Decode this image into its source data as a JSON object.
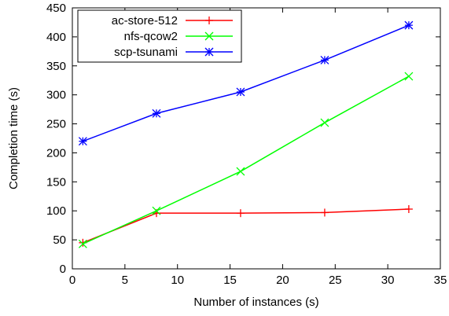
{
  "chart_data": {
    "type": "line",
    "title": "",
    "xlabel": "Number of instances (s)",
    "ylabel": "Completion time (s)",
    "xlim": [
      0,
      35
    ],
    "ylim": [
      0,
      450
    ],
    "xticks": [
      0,
      5,
      10,
      15,
      20,
      25,
      30,
      35
    ],
    "yticks": [
      0,
      50,
      100,
      150,
      200,
      250,
      300,
      350,
      400,
      450
    ],
    "grid": false,
    "legend_position": "top-left",
    "series": [
      {
        "name": "ac-store-512",
        "color": "#ff0000",
        "marker": "plus",
        "x": [
          1,
          8,
          16,
          24,
          32
        ],
        "y": [
          45,
          96,
          96,
          97,
          103
        ]
      },
      {
        "name": "nfs-qcow2",
        "color": "#00ff00",
        "marker": "cross",
        "x": [
          1,
          8,
          16,
          24,
          32
        ],
        "y": [
          43,
          100,
          168,
          252,
          332
        ]
      },
      {
        "name": "scp-tsunami",
        "color": "#0000ff",
        "marker": "star",
        "x": [
          1,
          8,
          16,
          24,
          32
        ],
        "y": [
          220,
          268,
          305,
          360,
          420
        ]
      }
    ]
  }
}
